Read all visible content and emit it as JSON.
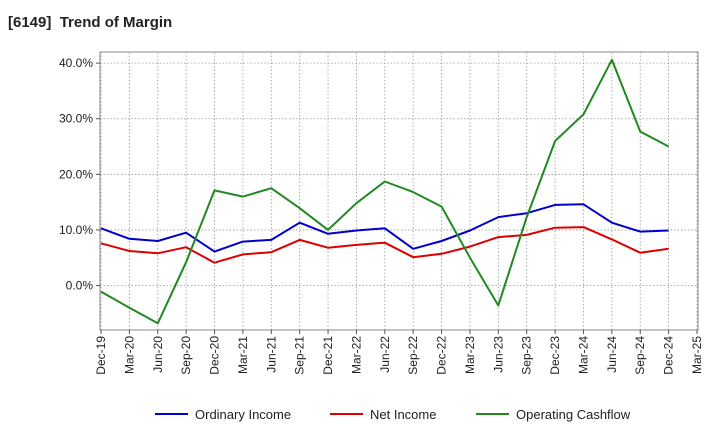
{
  "chart_data": {
    "type": "line",
    "title": "[6149]  Trend of Margin",
    "xlabel": "",
    "ylabel": "",
    "categories": [
      "Dec-19",
      "Mar-20",
      "Jun-20",
      "Sep-20",
      "Dec-20",
      "Mar-21",
      "Jun-21",
      "Sep-21",
      "Dec-21",
      "Mar-22",
      "Jun-22",
      "Sep-22",
      "Dec-22",
      "Mar-23",
      "Jun-23",
      "Sep-23",
      "Dec-23",
      "Mar-24",
      "Jun-24",
      "Sep-24",
      "Dec-24",
      "Mar-25"
    ],
    "ylim": [
      -8,
      42
    ],
    "yticks": [
      0,
      10,
      20,
      30,
      40
    ],
    "ytick_labels": [
      "0.0%",
      "10.0%",
      "20.0%",
      "30.0%",
      "40.0%"
    ],
    "grid": true,
    "legend_position": "bottom",
    "series": [
      {
        "name": "Ordinary Income",
        "color": "#0000cc",
        "values": [
          10.3,
          8.4,
          8.0,
          9.5,
          6.1,
          7.9,
          8.2,
          11.3,
          9.3,
          9.9,
          10.3,
          6.6,
          8.0,
          9.9,
          12.3,
          13.0,
          14.5,
          14.6,
          11.3,
          9.7,
          9.9,
          null
        ]
      },
      {
        "name": "Net Income",
        "color": "#dd0000",
        "values": [
          7.6,
          6.2,
          5.8,
          6.9,
          4.1,
          5.6,
          6.0,
          8.2,
          6.8,
          7.3,
          7.7,
          5.1,
          5.7,
          7.0,
          8.7,
          9.1,
          10.4,
          10.5,
          8.3,
          5.9,
          6.6,
          null
        ]
      },
      {
        "name": "Operating Cashflow",
        "color": "#228822",
        "values": [
          -1.1,
          -4.0,
          -6.8,
          4.2,
          17.1,
          16.0,
          17.5,
          13.9,
          10.0,
          14.8,
          18.7,
          16.8,
          14.2,
          5.0,
          -3.6,
          12.3,
          26.0,
          30.8,
          40.6,
          27.7,
          25.0,
          null
        ]
      }
    ]
  }
}
